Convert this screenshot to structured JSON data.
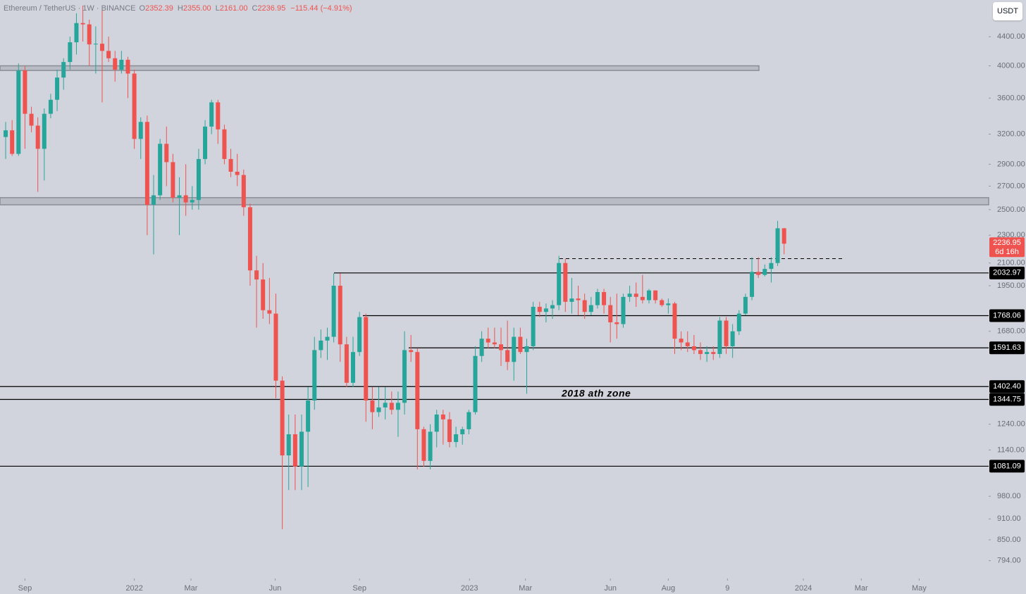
{
  "chart_data": {
    "type": "candlestick",
    "header": {
      "symbol": "Ethereum / TetherUS",
      "interval": "1W",
      "exchange": "BINANCE",
      "ohlc": [
        {
          "key": "O",
          "value": "2352.39"
        },
        {
          "key": "H",
          "value": "2355.00"
        },
        {
          "key": "L",
          "value": "2161.00"
        },
        {
          "key": "C",
          "value": "2236.95"
        }
      ],
      "change": "−115.44 (−4.91%)"
    },
    "currency": "USDT",
    "log_scale": true,
    "up_color": "#26a69a",
    "down_color": "#ef5350",
    "series": [
      {
        "name": "Ethereum / TetherUS",
        "x": [
          0,
          1,
          2,
          3,
          4,
          5,
          6,
          7,
          8,
          9,
          10,
          11,
          12,
          13,
          14,
          15,
          16,
          17,
          18,
          19,
          20,
          21,
          22,
          23,
          24,
          25,
          26,
          27,
          28,
          29,
          30,
          31,
          32,
          33,
          34,
          35,
          36,
          37,
          38,
          39,
          40,
          41,
          42,
          43,
          44,
          45,
          46,
          47,
          48,
          49,
          50,
          51,
          52,
          53,
          54,
          55,
          56,
          57,
          58,
          59,
          60,
          61,
          62,
          63,
          64,
          65,
          66,
          67,
          68,
          69,
          70,
          71,
          72,
          73,
          74,
          75,
          76,
          77,
          78,
          79,
          80,
          81,
          82,
          83,
          84,
          85,
          86,
          87,
          88,
          89,
          90,
          91,
          92,
          93,
          94,
          95,
          96,
          97,
          98,
          99,
          100,
          101,
          102,
          103,
          104,
          105,
          106,
          107,
          108,
          109,
          110,
          111,
          112,
          113,
          114,
          115,
          116,
          117,
          118,
          119,
          120,
          121
        ],
        "open": [
          3170,
          3240,
          3000,
          3940,
          3420,
          3290,
          3050,
          3420,
          3580,
          3850,
          4050,
          4320,
          4600,
          4580,
          4290,
          4300,
          4200,
          4100,
          3950,
          4080,
          3900,
          3150,
          3330,
          2540,
          2620,
          3100,
          2920,
          2600,
          2620,
          2560,
          2580,
          2950,
          3280,
          3550,
          3250,
          2950,
          2830,
          2800,
          2520,
          2050,
          1990,
          1800,
          1780,
          1430,
          1120,
          1200,
          1080,
          1210,
          1340,
          1580,
          1630,
          1650,
          1950,
          1610,
          1420,
          1570,
          1760,
          1340,
          1290,
          1310,
          1330,
          1300,
          1330,
          1580,
          1570,
          1220,
          1100,
          1210,
          1280,
          1260,
          1170,
          1200,
          1220,
          1290,
          1550,
          1640,
          1620,
          1610,
          1580,
          1520,
          1650,
          1570,
          1600,
          1820,
          1790,
          1810,
          1830,
          2100,
          1850,
          1870,
          1860,
          1790,
          1830,
          1910,
          1830,
          1730,
          1720,
          1880,
          1900,
          1880,
          1860,
          1920,
          1860,
          1830,
          1840,
          1640,
          1620,
          1600,
          1580,
          1560,
          1570,
          1560,
          1740,
          1600,
          1680,
          1780,
          1880,
          2040,
          2020,
          2060,
          2100,
          2352.39
        ],
        "high": [
          3330,
          3350,
          4030,
          4000,
          3500,
          3380,
          3480,
          3650,
          3950,
          4100,
          4400,
          4750,
          4870,
          4650,
          4550,
          4800,
          4400,
          4200,
          4200,
          4120,
          3950,
          3380,
          3400,
          2800,
          3150,
          3280,
          3000,
          2780,
          2900,
          2700,
          3050,
          3350,
          3580,
          3580,
          3300,
          3050,
          3000,
          2850,
          2550,
          2150,
          2100,
          2000,
          1900,
          1450,
          1280,
          1280,
          1280,
          1400,
          1650,
          1690,
          1700,
          2030,
          2030,
          1650,
          1650,
          1790,
          1780,
          1400,
          1400,
          1400,
          1380,
          1380,
          1680,
          1660,
          1590,
          1230,
          1240,
          1300,
          1300,
          1290,
          1230,
          1230,
          1300,
          1600,
          1680,
          1700,
          1700,
          1700,
          1740,
          1700,
          1700,
          1640,
          1850,
          1850,
          1840,
          1860,
          2150,
          2130,
          2000,
          1950,
          1900,
          1880,
          1930,
          1930,
          1880,
          1900,
          1900,
          1950,
          1970,
          2020,
          1930,
          1920,
          1870,
          1870,
          1850,
          1680,
          1680,
          1660,
          1620,
          1600,
          1600,
          1760,
          1760,
          1720,
          1800,
          1900,
          2140,
          2140,
          2090,
          2140,
          2410,
          2355
        ],
        "low": [
          2950,
          2980,
          2980,
          3050,
          3220,
          2650,
          2750,
          3370,
          3450,
          3700,
          3950,
          4150,
          4330,
          4000,
          3900,
          3550,
          4050,
          3800,
          3900,
          3600,
          3050,
          2950,
          2300,
          2160,
          2580,
          2700,
          2560,
          2300,
          2450,
          2500,
          2500,
          2900,
          3200,
          3100,
          2900,
          2780,
          2700,
          2450,
          1950,
          1700,
          1750,
          1720,
          1350,
          880,
          1000,
          1000,
          1000,
          1010,
          1300,
          1540,
          1530,
          1620,
          1520,
          1400,
          1400,
          1550,
          1250,
          1220,
          1270,
          1260,
          1280,
          1190,
          1280,
          1520,
          1070,
          1080,
          1070,
          1150,
          1160,
          1150,
          1150,
          1160,
          1200,
          1280,
          1520,
          1590,
          1590,
          1500,
          1480,
          1430,
          1560,
          1370,
          1580,
          1760,
          1730,
          1750,
          1800,
          1790,
          1780,
          1770,
          1750,
          1770,
          1810,
          1780,
          1620,
          1640,
          1700,
          1850,
          1820,
          1840,
          1840,
          1840,
          1820,
          1780,
          1560,
          1580,
          1570,
          1560,
          1530,
          1520,
          1530,
          1540,
          1560,
          1540,
          1660,
          1770,
          1860,
          2000,
          2010,
          1970,
          2080,
          2161
        ],
        "close": [
          3240,
          3000,
          3940,
          3420,
          3290,
          3050,
          3420,
          3580,
          3850,
          4050,
          4320,
          4600,
          4580,
          4290,
          4300,
          4200,
          4100,
          3950,
          4080,
          3900,
          3150,
          3330,
          2540,
          2620,
          3100,
          2920,
          2600,
          2620,
          2560,
          2580,
          2950,
          3280,
          3550,
          3250,
          2950,
          2830,
          2800,
          2520,
          2050,
          1990,
          1800,
          1780,
          1430,
          1120,
          1200,
          1080,
          1210,
          1340,
          1580,
          1630,
          1650,
          1950,
          1610,
          1420,
          1570,
          1760,
          1340,
          1290,
          1310,
          1330,
          1300,
          1330,
          1580,
          1570,
          1220,
          1100,
          1210,
          1280,
          1260,
          1170,
          1200,
          1220,
          1290,
          1550,
          1640,
          1620,
          1610,
          1580,
          1520,
          1650,
          1570,
          1600,
          1820,
          1790,
          1810,
          1830,
          2100,
          1850,
          1870,
          1860,
          1790,
          1830,
          1910,
          1830,
          1730,
          1720,
          1880,
          1900,
          1880,
          1860,
          1920,
          1860,
          1830,
          1840,
          1640,
          1620,
          1600,
          1580,
          1560,
          1570,
          1560,
          1740,
          1600,
          1680,
          1780,
          1880,
          2040,
          2020,
          2060,
          2100,
          2352.39,
          2236.95
        ]
      }
    ],
    "countdown": "6d 16h",
    "levels": [
      2032.97,
      1768.06,
      1591.63,
      {
        "value": 1402.4,
        "label": "1402.40"
      },
      1344.75,
      1081.09
    ],
    "zones": [
      [
        3940,
        4000
      ],
      [
        2540,
        2600
      ]
    ],
    "dashed_level": 2130,
    "annotation": "2018 ath zone",
    "xlim": [
      -0.88,
      152.8
    ],
    "xticks": [
      {
        "value": 3,
        "label": "Sep"
      },
      {
        "value": 20,
        "label": "2022"
      },
      {
        "value": 28.8,
        "label": "Mar"
      },
      {
        "value": 41.9,
        "label": "Jun"
      },
      {
        "value": 55,
        "label": "Sep"
      },
      {
        "value": 72.1,
        "label": "2023"
      },
      {
        "value": 80.8,
        "label": "Mar"
      },
      {
        "value": 94,
        "label": "Jun"
      },
      {
        "value": 103,
        "label": "Aug"
      },
      {
        "value": 112.2,
        "label": "9"
      },
      {
        "value": 124,
        "label": "2024"
      },
      {
        "value": 133,
        "label": "Mar"
      },
      {
        "value": 142,
        "label": "May"
      }
    ],
    "ylim": [
      749,
      4960
    ],
    "yticks": [
      {
        "value": 4400,
        "label": "4400.00"
      },
      {
        "value": 4000,
        "label": "4000.00"
      },
      {
        "value": 3600,
        "label": "3600.00"
      },
      {
        "value": 3200,
        "label": "3200.00"
      },
      {
        "value": 2900,
        "label": "2900.00"
      },
      {
        "value": 2700,
        "label": "2700.00"
      },
      {
        "value": 2500,
        "label": "2500.00"
      },
      {
        "value": 2300,
        "label": "2300.00"
      },
      {
        "value": 2100,
        "label": "2100.00"
      },
      {
        "value": 1950,
        "label": "1950.00"
      },
      {
        "value": 1680,
        "label": "1680.00"
      },
      {
        "value": 1240,
        "label": "1240.00"
      },
      {
        "value": 1140,
        "label": "1140.00"
      },
      {
        "value": 980,
        "label": "980.00"
      },
      {
        "value": 910,
        "label": "910.00"
      },
      {
        "value": 850,
        "label": "850.00"
      },
      {
        "value": 794,
        "label": "794.00"
      }
    ]
  }
}
